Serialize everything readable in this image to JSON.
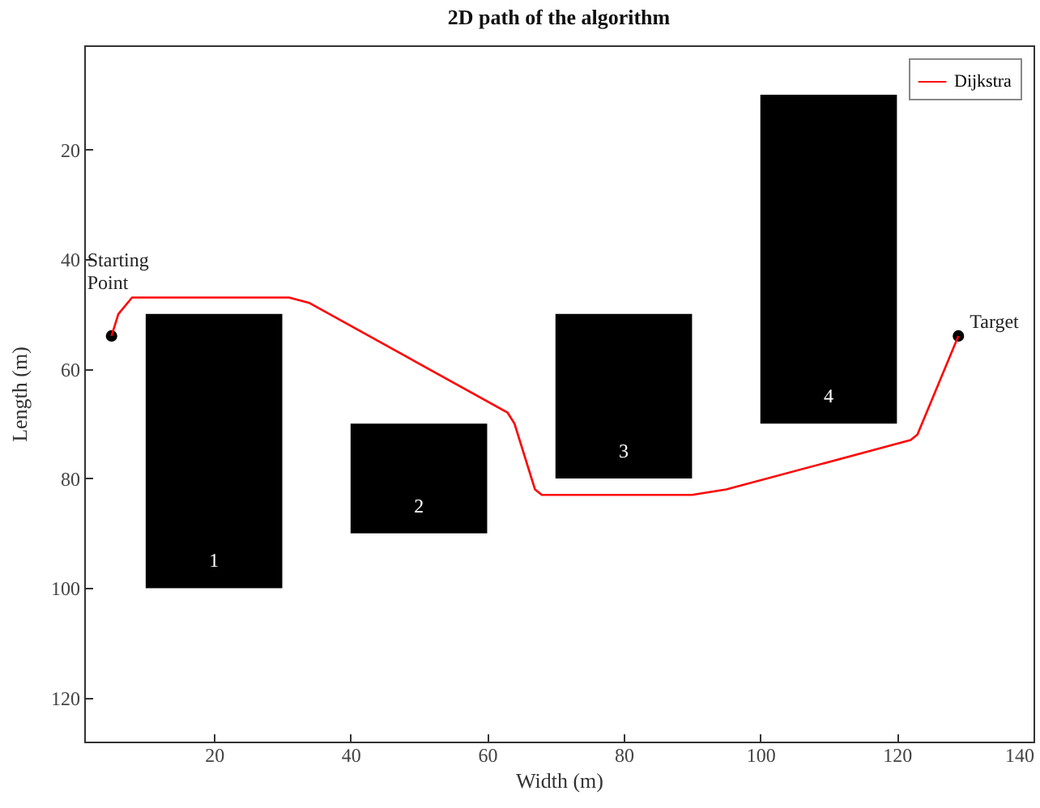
{
  "chart_data": {
    "type": "line",
    "title": "2D path of the algorithm",
    "xlabel": "Width (m)",
    "ylabel": "Length (m)",
    "xlim": [
      1,
      140
    ],
    "xticks": [
      20,
      40,
      60,
      80,
      100,
      120,
      140
    ],
    "ylim": [
      128,
      1
    ],
    "yticks": [
      20,
      40,
      60,
      80,
      100,
      120
    ],
    "grid": false,
    "legend": "top right",
    "series": [
      {
        "type": "bar",
        "color": "#000000",
        "x": [
          20,
          50,
          80,
          110
        ],
        "base": [
          50,
          70,
          50,
          10
        ],
        "values": [
          50,
          20,
          30,
          60
        ]
      },
      {
        "name": "Dijkstra",
        "color": "#ff0000",
        "x": [
          5,
          6,
          8,
          31,
          34,
          63,
          64,
          67,
          68,
          90,
          95,
          122,
          123,
          129
        ],
        "values": [
          54,
          50,
          47,
          47,
          48,
          68,
          70,
          82,
          83,
          83,
          82,
          73,
          72,
          54
        ]
      },
      {
        "type": "scatter",
        "color": "#000000",
        "marker": "circle",
        "x": [
          5,
          129
        ],
        "values": [
          54,
          54
        ]
      }
    ],
    "annotations": [
      "1",
      "2",
      "3",
      "4",
      "Starting Point",
      "Target"
    ]
  }
}
